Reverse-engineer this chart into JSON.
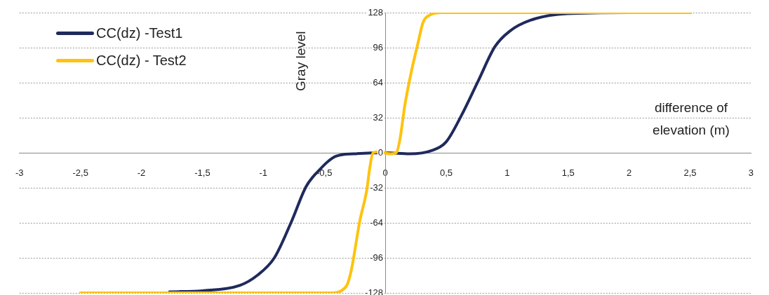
{
  "chart_data": {
    "type": "line",
    "xlabel": "difference of elevation (m)",
    "ylabel": "Gray level",
    "xlim": [
      -3,
      3
    ],
    "xticks": [
      -3,
      {
        "value": -2.5,
        "label": "-2,5"
      },
      -2,
      {
        "value": -1.5,
        "label": "-1,5"
      },
      -1,
      {
        "value": -0.5,
        "label": "-0,5"
      },
      0,
      {
        "value": 0.5,
        "label": "0,5"
      },
      1,
      {
        "value": 1.5,
        "label": "1,5"
      },
      2,
      {
        "value": 2.5,
        "label": "2,5"
      },
      3
    ],
    "ylim": [
      -128,
      128
    ],
    "yticks": [
      -128,
      -96,
      -64,
      -32,
      0,
      32,
      64,
      96,
      128
    ],
    "grid": "y",
    "legend": "top left",
    "marker": "none",
    "line_style": "solid",
    "series": [
      {
        "name": "CC(dz) -Test1",
        "color": "#1f2a5c",
        "x": [
          -1.77,
          -1.5,
          -1.19,
          -1.05,
          -0.91,
          -0.77,
          -0.65,
          -0.56,
          -0.4,
          -0.26,
          0,
          0.2,
          0.38,
          0.5,
          0.62,
          0.76,
          0.9,
          1.02,
          1.19,
          1.49,
          2,
          2.5
        ],
        "values": [
          -127,
          -126,
          -121,
          -112,
          -96,
          -63,
          -31,
          -18,
          -3,
          -1,
          0,
          -1,
          2,
          10,
          33,
          65,
          97,
          111,
          121,
          127,
          128,
          128
        ]
      },
      {
        "name": "CC(dz) - Test2",
        "color": "#ffc20e",
        "x": [
          -2.5,
          -1,
          -0.45,
          -0.32,
          -0.28,
          -0.21,
          -0.15,
          -0.13,
          -0.1,
          -0.05,
          0.04,
          0.09,
          0.12,
          0.16,
          0.21,
          0.27,
          0.31,
          0.37,
          0.46,
          1,
          2.5
        ],
        "values": [
          -128,
          -128,
          -128,
          -122,
          -108,
          -63,
          -33,
          -16,
          0,
          1,
          -1,
          0,
          12,
          43,
          72,
          101,
          119,
          126,
          128,
          128,
          128
        ]
      }
    ]
  }
}
